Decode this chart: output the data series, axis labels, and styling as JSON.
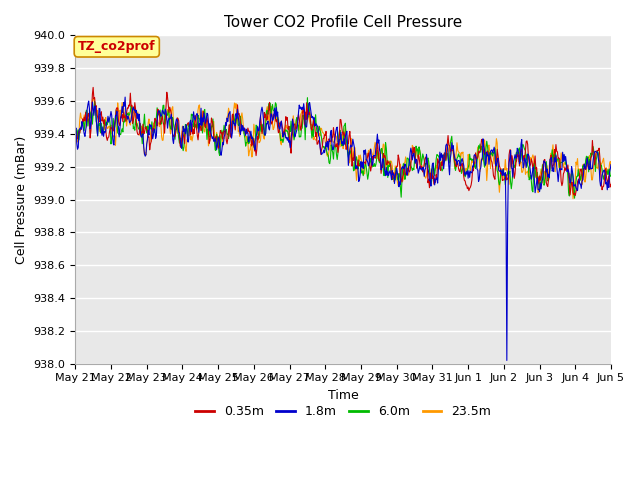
{
  "title": "Tower CO2 Profile Cell Pressure",
  "ylabel": "Cell Pressure (mBar)",
  "xlabel": "Time",
  "ylim": [
    938.0,
    940.0
  ],
  "yticks": [
    938.0,
    938.2,
    938.4,
    938.6,
    938.8,
    939.0,
    939.2,
    939.4,
    939.6,
    939.8,
    940.0
  ],
  "series_labels": [
    "0.35m",
    "1.8m",
    "6.0m",
    "23.5m"
  ],
  "series_colors": [
    "#cc0000",
    "#0000cc",
    "#00bb00",
    "#ff9900"
  ],
  "line_width": 0.8,
  "bg_color": "#e8e8e8",
  "fig_color": "#ffffff",
  "label_box": "TZ_co2prof",
  "label_box_color": "#ffff99",
  "label_box_border": "#cc8800",
  "label_box_text": "#cc0000",
  "title_fontsize": 11,
  "axis_fontsize": 9,
  "tick_fontsize": 8,
  "legend_fontsize": 9
}
